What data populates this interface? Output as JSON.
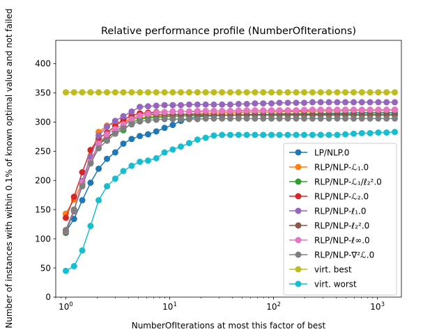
{
  "chart_data": {
    "type": "line",
    "title": "Relative performance profile (NumberOfIterations)",
    "xlabel": "NumberOfIterations at most this factor of best",
    "ylabel": "Number of instances with within 0.1% of known optimal value and not failed",
    "xscale": "log",
    "xlim": [
      0.8,
      1700
    ],
    "ylim": [
      0,
      440
    ],
    "yticks": [
      0,
      50,
      100,
      150,
      200,
      250,
      300,
      350,
      400
    ],
    "xticks": [
      {
        "value": 1,
        "base": "10",
        "exp": "0"
      },
      {
        "value": 10,
        "base": "10",
        "exp": "1"
      },
      {
        "value": 100,
        "base": "10",
        "exp": "2"
      },
      {
        "value": 1000,
        "base": "10",
        "exp": "3"
      }
    ],
    "grid": false,
    "legend_position": "lower-right",
    "x": [
      1.0,
      1.2,
      1.44,
      1.73,
      2.07,
      2.49,
      2.99,
      3.58,
      4.3,
      5.16,
      6.19,
      7.43,
      8.92,
      10.7,
      12.8,
      15.4,
      18.5,
      22.2,
      26.6,
      31.9,
      38.3,
      46.0,
      55.2,
      66.2,
      79.5,
      95.4,
      114,
      137,
      165,
      197,
      237,
      284,
      341,
      410,
      491,
      590,
      708,
      849,
      1019,
      1223,
      1468
    ],
    "series": [
      {
        "name": "LP/NLP.0",
        "color": "#1f77b4",
        "values": [
          112,
          134,
          166,
          196,
          220,
          237,
          248,
          263,
          271,
          276,
          279,
          284,
          290,
          295,
          302,
          306,
          309,
          310,
          311,
          311,
          312,
          312,
          313,
          313,
          313,
          313,
          314,
          314,
          314,
          314,
          314,
          314,
          315,
          315,
          315,
          316,
          316,
          316,
          316,
          316,
          316
        ]
      },
      {
        "name": "RLP/NLP-ℒ₁.0",
        "color": "#ff7f0e",
        "values": [
          143,
          167,
          196,
          242,
          283,
          294,
          298,
          302,
          305,
          307,
          309,
          310,
          311,
          312,
          313,
          314,
          314,
          315,
          315,
          316,
          316,
          316,
          317,
          317,
          317,
          317,
          318,
          318,
          318,
          318,
          318,
          319,
          319,
          319,
          319,
          320,
          320,
          320,
          320,
          320,
          321
        ]
      },
      {
        "name": "RLP/NLP-ℒ₁/ℓ₂².0",
        "color": "#2ca02c",
        "values": [
          110,
          150,
          192,
          232,
          263,
          275,
          282,
          286,
          299,
          305,
          307,
          308,
          309,
          310,
          310,
          311,
          311,
          311,
          312,
          312,
          312,
          312,
          312,
          312,
          312,
          313,
          313,
          313,
          313,
          313,
          313,
          313,
          313,
          313,
          313,
          313,
          313,
          313,
          313,
          313,
          313
        ]
      },
      {
        "name": "RLP/NLP-ℒ₂.0",
        "color": "#d62728",
        "values": [
          136,
          172,
          214,
          252,
          272,
          282,
          293,
          304,
          311,
          315,
          316,
          317,
          317,
          318,
          318,
          318,
          318,
          319,
          319,
          319,
          319,
          319,
          320,
          320,
          320,
          320,
          320,
          320,
          320,
          320,
          321,
          321,
          321,
          321,
          321,
          321,
          321,
          321,
          321,
          321,
          321
        ]
      },
      {
        "name": "RLP/NLP-ℓ₁.0",
        "color": "#9467bd",
        "values": [
          112,
          147,
          199,
          240,
          277,
          292,
          302,
          310,
          318,
          326,
          327,
          328,
          329,
          329,
          329,
          330,
          330,
          330,
          330,
          330,
          330,
          331,
          331,
          332,
          332,
          332,
          333,
          333,
          333,
          333,
          334,
          334,
          334,
          334,
          334,
          334,
          334,
          334,
          334,
          334,
          334
        ]
      },
      {
        "name": "RLP/NLP-ℓ₂².0",
        "color": "#8c564b",
        "values": [
          113,
          148,
          196,
          230,
          262,
          272,
          283,
          293,
          306,
          311,
          313,
          313,
          313,
          313,
          313,
          313,
          313,
          312,
          312,
          312,
          312,
          312,
          312,
          312,
          312,
          312,
          312,
          312,
          312,
          312,
          312,
          312,
          312,
          312,
          312,
          312,
          312,
          312,
          312,
          312,
          312
        ]
      },
      {
        "name": "RLP/NLP-ℓ∞.0",
        "color": "#e377c2",
        "values": [
          114,
          149,
          197,
          231,
          263,
          279,
          288,
          296,
          305,
          311,
          314,
          316,
          317,
          318,
          318,
          318,
          319,
          319,
          319,
          319,
          319,
          320,
          320,
          320,
          320,
          320,
          320,
          320,
          320,
          321,
          321,
          321,
          321,
          321,
          321,
          321,
          321,
          321,
          321,
          321,
          321
        ]
      },
      {
        "name": "RLP/NLP-∇²ℒ.0",
        "color": "#7f7f7f",
        "values": [
          115,
          150,
          190,
          229,
          255,
          268,
          280,
          289,
          296,
          301,
          303,
          304,
          305,
          305,
          305,
          305,
          305,
          306,
          306,
          306,
          306,
          306,
          306,
          306,
          306,
          306,
          306,
          306,
          306,
          306,
          306,
          306,
          306,
          306,
          306,
          306,
          306,
          306,
          306,
          306,
          306
        ]
      },
      {
        "name": "virt. best",
        "color": "#bcbd22",
        "values": [
          351,
          351,
          351,
          351,
          351,
          351,
          351,
          351,
          351,
          351,
          351,
          351,
          351,
          351,
          351,
          351,
          351,
          351,
          351,
          351,
          351,
          351,
          351,
          351,
          351,
          351,
          351,
          351,
          351,
          351,
          351,
          351,
          351,
          351,
          351,
          351,
          351,
          351,
          351,
          351,
          351
        ]
      },
      {
        "name": "virt. worst",
        "color": "#17becf",
        "values": [
          45,
          53,
          80,
          122,
          166,
          190,
          203,
          216,
          225,
          232,
          234,
          238,
          248,
          253,
          258,
          264,
          270,
          273,
          277,
          278,
          278,
          278,
          278,
          278,
          278,
          278,
          278,
          278,
          278,
          278,
          278,
          278,
          278,
          278,
          279,
          280,
          281,
          281,
          282,
          282,
          283
        ]
      }
    ]
  }
}
